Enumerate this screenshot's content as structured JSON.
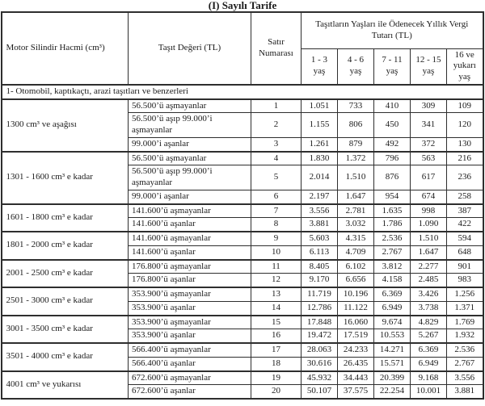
{
  "title": "(I) Sayılı Tarife",
  "table": {
    "headers": {
      "engine": "Motor Silindir Hacmi (cm³)",
      "value": "Taşıt Değeri (TL)",
      "row_no": "Satır Numarası",
      "tax_group": "Taşıtların Yaşları ile Ödenecek Yıllık Vergi Tutarı (TL)",
      "ages": [
        "1 - 3 yaş",
        "4 - 6 yaş",
        "7 - 11 yaş",
        "12 - 15 yaş",
        "16 ve yukarı yaş"
      ]
    },
    "section": "1- Otomobil, kaptıkaçtı, arazi taşıtları ve benzerleri",
    "groups": [
      {
        "engine": "1300 cm³ ve aşağısı",
        "rows": [
          {
            "value": "56.500’ü aşmayanlar",
            "no": "1",
            "taxes": [
              "1.051",
              "733",
              "410",
              "309",
              "109"
            ]
          },
          {
            "value": "56.500’ü aşıp 99.000’i aşmayanlar",
            "no": "2",
            "taxes": [
              "1.155",
              "806",
              "450",
              "341",
              "120"
            ]
          },
          {
            "value": "99.000’i aşanlar",
            "no": "3",
            "taxes": [
              "1.261",
              "879",
              "492",
              "372",
              "130"
            ]
          }
        ]
      },
      {
        "engine": "1301 - 1600 cm³ e kadar",
        "rows": [
          {
            "value": "56.500’ü aşmayanlar",
            "no": "4",
            "taxes": [
              "1.830",
              "1.372",
              "796",
              "563",
              "216"
            ]
          },
          {
            "value": "56.500’ü aşıp 99.000’i aşmayanlar",
            "no": "5",
            "taxes": [
              "2.014",
              "1.510",
              "876",
              "617",
              "236"
            ]
          },
          {
            "value": "99.000’i aşanlar",
            "no": "6",
            "taxes": [
              "2.197",
              "1.647",
              "954",
              "674",
              "258"
            ]
          }
        ]
      },
      {
        "engine": "1601 - 1800 cm³ e kadar",
        "rows": [
          {
            "value": "141.600’ü aşmayanlar",
            "no": "7",
            "taxes": [
              "3.556",
              "2.781",
              "1.635",
              "998",
              "387"
            ]
          },
          {
            "value": "141.600’ü aşanlar",
            "no": "8",
            "taxes": [
              "3.881",
              "3.032",
              "1.786",
              "1.090",
              "422"
            ]
          }
        ]
      },
      {
        "engine": "1801 - 2000 cm³ e kadar",
        "rows": [
          {
            "value": "141.600’ü aşmayanlar",
            "no": "9",
            "taxes": [
              "5.603",
              "4.315",
              "2.536",
              "1.510",
              "594"
            ]
          },
          {
            "value": "141.600’ü aşanlar",
            "no": "10",
            "taxes": [
              "6.113",
              "4.709",
              "2.767",
              "1.647",
              "648"
            ]
          }
        ]
      },
      {
        "engine": "2001 - 2500 cm³ e kadar",
        "rows": [
          {
            "value": "176.800’ü aşmayanlar",
            "no": "11",
            "taxes": [
              "8.405",
              "6.102",
              "3.812",
              "2.277",
              "901"
            ]
          },
          {
            "value": "176.800’ü aşanlar",
            "no": "12",
            "taxes": [
              "9.170",
              "6.656",
              "4.158",
              "2.485",
              "983"
            ]
          }
        ]
      },
      {
        "engine": "2501 - 3000 cm³ e kadar",
        "rows": [
          {
            "value": "353.900’ü aşmayanlar",
            "no": "13",
            "taxes": [
              "11.719",
              "10.196",
              "6.369",
              "3.426",
              "1.256"
            ]
          },
          {
            "value": "353.900’ü aşanlar",
            "no": "14",
            "taxes": [
              "12.786",
              "11.122",
              "6.949",
              "3.738",
              "1.371"
            ]
          }
        ]
      },
      {
        "engine": "3001 - 3500 cm³ e kadar",
        "rows": [
          {
            "value": "353.900’ü aşmayanlar",
            "no": "15",
            "taxes": [
              "17.848",
              "16.060",
              "9.674",
              "4.829",
              "1.769"
            ]
          },
          {
            "value": "353.900’ü aşanlar",
            "no": "16",
            "taxes": [
              "19.472",
              "17.519",
              "10.553",
              "5.267",
              "1.932"
            ]
          }
        ]
      },
      {
        "engine": "3501 - 4000 cm³ e kadar",
        "rows": [
          {
            "value": "566.400’ü aşmayanlar",
            "no": "17",
            "taxes": [
              "28.063",
              "24.233",
              "14.271",
              "6.369",
              "2.536"
            ]
          },
          {
            "value": "566.400’ü aşanlar",
            "no": "18",
            "taxes": [
              "30.616",
              "26.435",
              "15.571",
              "6.949",
              "2.767"
            ]
          }
        ]
      },
      {
        "engine": "4001 cm³ ve yukarısı",
        "rows": [
          {
            "value": "672.600’ü aşmayanlar",
            "no": "19",
            "taxes": [
              "45.932",
              "34.443",
              "20.399",
              "9.168",
              "3.556"
            ]
          },
          {
            "value": "672.600’ü aşanlar",
            "no": "20",
            "taxes": [
              "50.107",
              "37.575",
              "22.254",
              "10.001",
              "3.881"
            ]
          }
        ]
      }
    ]
  }
}
